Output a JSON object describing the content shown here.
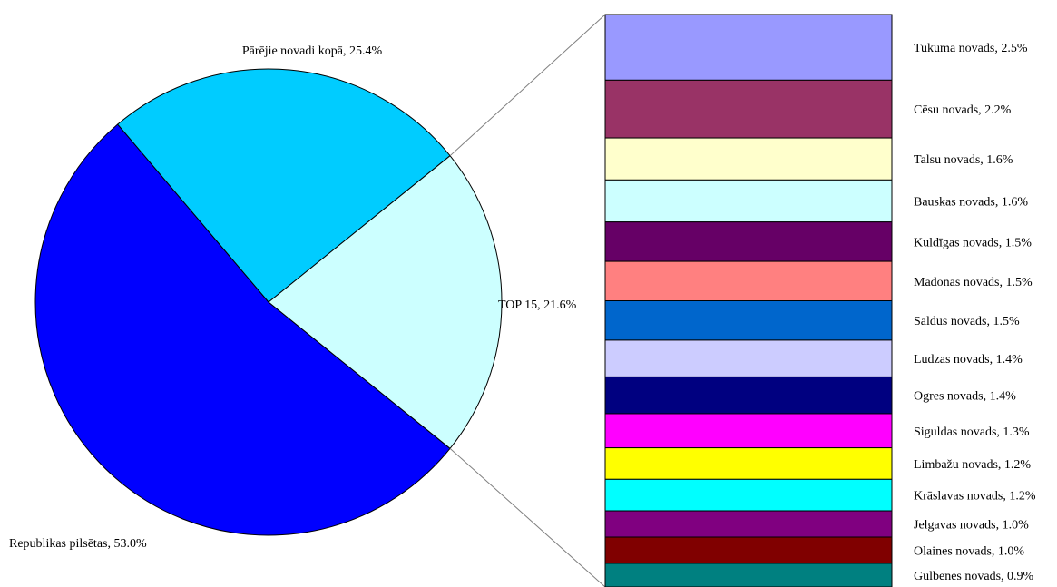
{
  "chart_data": [
    {
      "type": "pie",
      "slices": [
        {
          "label": "Republikas pilsētas, 53.0%",
          "value": 53.0,
          "color": "#0000FF"
        },
        {
          "label": "Pārējie novadi kopā, 25.4%",
          "value": 25.4,
          "color": "#00CCFF"
        },
        {
          "label": "TOP 15, 21.6%",
          "value": 21.6,
          "color": "#CCFFFF"
        }
      ]
    },
    {
      "type": "bar",
      "stacked": true,
      "segments": [
        {
          "label": "Tukuma novads, 2.5%",
          "value": 2.5,
          "color": "#9999FF"
        },
        {
          "label": "Cēsu novads, 2.2%",
          "value": 2.2,
          "color": "#993366"
        },
        {
          "label": "Talsu novads, 1.6%",
          "value": 1.6,
          "color": "#FFFFCC"
        },
        {
          "label": "Bauskas novads, 1.6%",
          "value": 1.6,
          "color": "#CCFFFF"
        },
        {
          "label": "Kuldīgas novads, 1.5%",
          "value": 1.5,
          "color": "#660066"
        },
        {
          "label": "Madonas novads, 1.5%",
          "value": 1.5,
          "color": "#FF8080"
        },
        {
          "label": "Saldus novads, 1.5%",
          "value": 1.5,
          "color": "#0066CC"
        },
        {
          "label": "Ludzas novads, 1.4%",
          "value": 1.4,
          "color": "#CCCCFF"
        },
        {
          "label": "Ogres novads, 1.4%",
          "value": 1.4,
          "color": "#000080"
        },
        {
          "label": "Siguldas novads, 1.3%",
          "value": 1.3,
          "color": "#FF00FF"
        },
        {
          "label": "Limbažu novads, 1.2%",
          "value": 1.2,
          "color": "#FFFF00"
        },
        {
          "label": "Krāslavas novads, 1.2%",
          "value": 1.2,
          "color": "#00FFFF"
        },
        {
          "label": "Jelgavas novads, 1.0%",
          "value": 1.0,
          "color": "#800080"
        },
        {
          "label": "Olaines novads, 1.0%",
          "value": 1.0,
          "color": "#800000"
        },
        {
          "label": "Gulbenes novads, 0.9%",
          "value": 0.9,
          "color": "#008080"
        }
      ]
    }
  ]
}
